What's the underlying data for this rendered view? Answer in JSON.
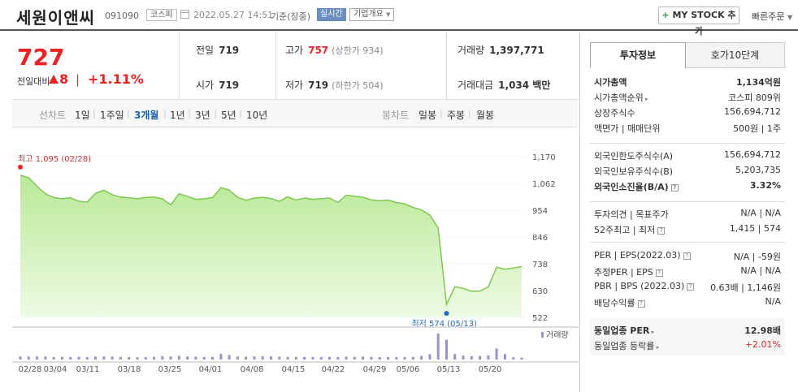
{
  "header": {
    "company_name": "세원이앤씨",
    "stock_code": "091090",
    "market": "코스피",
    "datetime": "2022.05.27 14:51",
    "basis": "기준(장중)",
    "realtime": "실시간",
    "company_overview": "기업개요",
    "mystock_plus": "+",
    "mystock_label": "MY STOCK 추가",
    "quick_order": "빠른주문"
  },
  "price": {
    "current": "727",
    "change_label": "전일대비",
    "change_amount": "8",
    "change_sep": "|",
    "change_pct": "+1.11%"
  },
  "info": {
    "prev_close_label": "전일",
    "prev_close": "719",
    "high_label": "고가",
    "high": "757",
    "upper_limit": "(상한가 934)",
    "volume_label": "거래량",
    "volume": "1,397,771",
    "open_label": "시가",
    "open": "719",
    "low_label": "저가",
    "low": "719",
    "lower_limit": "(하한가 504)",
    "trade_value_label": "거래대금",
    "trade_value": "1,034 백만"
  },
  "period_tabs": {
    "line_label": "선차트",
    "items": [
      "1일",
      "1주일",
      "3개월",
      "1년",
      "3년",
      "5년",
      "10년"
    ],
    "active": "3개월",
    "candle_label": "봉차트",
    "candle_items": [
      "일봉",
      "주봉",
      "월봉"
    ]
  },
  "chart_data": {
    "type": "area",
    "y_ticks": [
      1170,
      1062,
      954,
      846,
      738,
      630,
      522
    ],
    "x_ticks": [
      "02/28",
      "03/04",
      "03/11",
      "03/18",
      "03/25",
      "04/01",
      "04/08",
      "04/15",
      "04/22",
      "04/29",
      "05/06",
      "05/13",
      "05/20"
    ],
    "high_annotation": "최고 1,095 (02/28)",
    "low_annotation": "최저 574 (05/13)",
    "volume_label": "거래량",
    "colors": {
      "line": "#7dc94e",
      "fill": "#cdf0b0",
      "volume": "#9b8fcc",
      "high_dot": "#e22",
      "low_dot": "#1a6fc4"
    },
    "prices": [
      1095,
      1085,
      1050,
      1020,
      1005,
      1000,
      1004,
      990,
      987,
      1022,
      1035,
      1017,
      1007,
      1004,
      1000,
      1005,
      1007,
      1000,
      976,
      1020,
      1010,
      998,
      1000,
      1005,
      1045,
      1035,
      1006,
      994,
      1003,
      1006,
      1001,
      990,
      1008,
      995,
      1003,
      998,
      1000,
      1003,
      985,
      1015,
      1010,
      1006,
      996,
      992,
      995,
      985,
      980,
      965,
      955,
      935,
      882,
      574,
      645,
      639,
      627,
      628,
      644,
      724,
      716,
      721,
      727
    ],
    "volume": [
      1.5,
      1.5,
      1.5,
      1.5,
      1.2,
      1.3,
      1.2,
      1.3,
      1.2,
      1.4,
      1.5,
      1.4,
      1.3,
      1.2,
      1.1,
      1.2,
      1.3,
      1.6,
      1.5,
      1.8,
      1.5,
      1.4,
      1.3,
      1.3,
      2.8,
      2.2,
      1.5,
      1.4,
      1.5,
      1.6,
      1.5,
      1.4,
      1.3,
      1.3,
      1.3,
      1.2,
      1.3,
      1.3,
      1.2,
      1.4,
      1.3,
      1.4,
      1.3,
      1.2,
      1.2,
      1.2,
      1.2,
      1.3,
      1.7,
      2.6,
      12.5,
      9.5,
      2.6,
      1.9,
      1.6,
      1.7,
      2.0,
      5.3,
      2.6,
      1.1,
      0.9
    ]
  },
  "right_panel": {
    "tab_invest": "투자정보",
    "tab_ask": "호가10단계",
    "rows1": [
      {
        "label": "시가총액",
        "value": "1,134억원",
        "bold": true
      },
      {
        "label": "시가총액순위",
        "value": "코스피 809위",
        "arrow": true
      },
      {
        "label": "상장주식수",
        "value": "156,694,712"
      },
      {
        "label": "액면가 | 매매단위",
        "value": "500원 | 1주"
      }
    ],
    "rows2": [
      {
        "label": "외국인한도주식수(A)",
        "value": "156,694,712"
      },
      {
        "label": "외국인보유주식수(B)",
        "value": "5,203,735"
      },
      {
        "label": "외국인소진율(B/A)",
        "value": "3.32%",
        "bold": true,
        "help": true
      }
    ],
    "rows3": [
      {
        "label": "투자의견 | 목표주가",
        "value": "N/A | N/A"
      },
      {
        "label": "52주최고 | 최저",
        "value": "1,415 | 574",
        "help": true
      }
    ],
    "rows4": [
      {
        "label": "PER | EPS(2022.03)",
        "value": "N/A | -59원",
        "help": true
      },
      {
        "label": "추정PER | EPS",
        "value": "N/A | N/A",
        "help": true
      },
      {
        "label": "PBR | BPS (2022.03)",
        "value": "0.63배 | 1,146원",
        "help": true
      },
      {
        "label": "배당수익률",
        "value": "N/A",
        "help": true
      }
    ],
    "summary": [
      {
        "label": "동일업종 PER",
        "value": "12.98배",
        "bold": true,
        "arrow": true
      },
      {
        "label": "동일업종 등락률",
        "value": "+2.01%",
        "red": true,
        "arrow": true
      }
    ]
  }
}
